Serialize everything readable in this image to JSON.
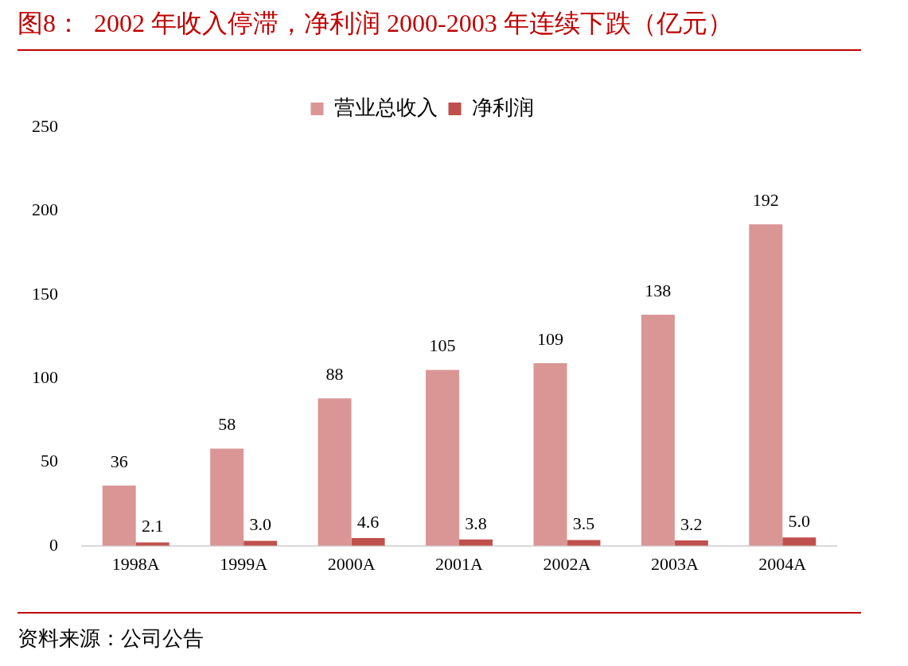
{
  "chart_data": {
    "type": "bar",
    "title": "图8：  2002 年收入停滞，净利润 2000-2003 年连续下跌（亿元）",
    "categories": [
      "1998A",
      "1999A",
      "2000A",
      "2001A",
      "2002A",
      "2003A",
      "2004A"
    ],
    "series": [
      {
        "name": "营业总收入",
        "color": "#d99694",
        "values": [
          36,
          58,
          88,
          105,
          109,
          138,
          192
        ],
        "value_labels": [
          "36",
          "58",
          "88",
          "105",
          "109",
          "138",
          "192"
        ]
      },
      {
        "name": "净利润",
        "color": "#c0504d",
        "values": [
          2.1,
          3.0,
          4.6,
          3.8,
          3.5,
          3.2,
          5.0
        ],
        "value_labels": [
          "2.1",
          "3.0",
          "4.6",
          "3.8",
          "3.5",
          "3.2",
          "5.0"
        ]
      }
    ],
    "ylim": [
      0,
      250
    ],
    "yticks": [
      0,
      50,
      100,
      150,
      200,
      250
    ],
    "grid": false,
    "legend": "top",
    "annotations": [
      "资料来源：公司公告"
    ]
  }
}
